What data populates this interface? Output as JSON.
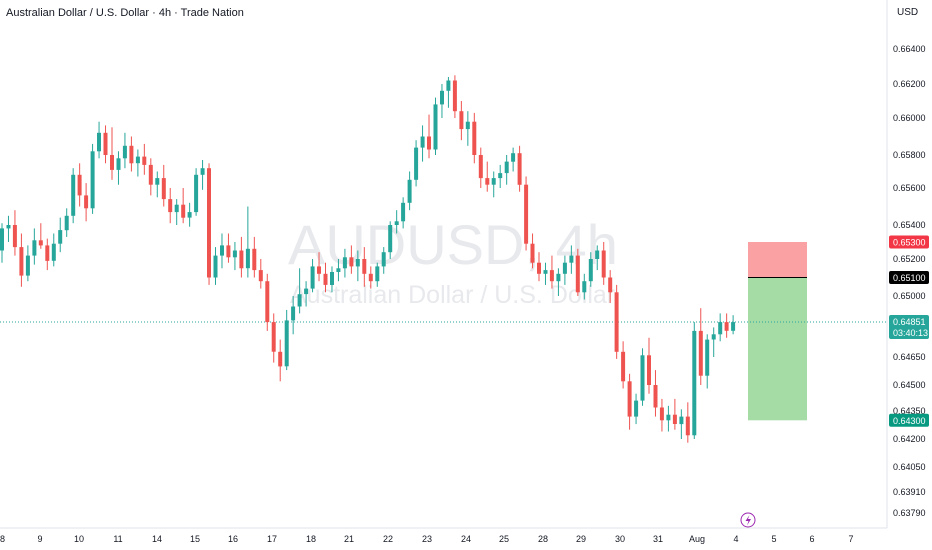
{
  "header": {
    "title": "Australian Dollar / U.S. Dollar · 4h · Trade Nation",
    "currency": "USD"
  },
  "watermark": {
    "symbol": "AUDUSD, 4h",
    "description": "Australian Dollar / U.S. Dollar"
  },
  "colors": {
    "up": "#26a69a",
    "down": "#ef5350",
    "stop_zone": "#faa1a4",
    "target_zone": "#a5dca5",
    "current_price": "#26a69a",
    "stop_badge": "#f23645",
    "target_badge": "#089981",
    "entry_badge": "#000000"
  },
  "chart_data": {
    "type": "candlestick",
    "symbol": "AUDUSD",
    "timeframe": "4h",
    "y_axis_ticks": [
      "0.66400",
      "0.66200",
      "0.66000",
      "0.65800",
      "0.65600",
      "0.65400",
      "0.65200",
      "0.65000",
      "0.64650",
      "0.64500",
      "0.64350",
      "0.64200",
      "0.64050",
      "0.63910",
      "0.63790"
    ],
    "x_axis_ticks": [
      "8",
      "9",
      "10",
      "11",
      "14",
      "15",
      "16",
      "17",
      "18",
      "21",
      "22",
      "23",
      "24",
      "25",
      "28",
      "29",
      "30",
      "31",
      "Aug",
      "4",
      "5",
      "6",
      "7"
    ],
    "current_price": "0.64851",
    "countdown": "03:40:13",
    "position": {
      "type": "short",
      "stop": "0.65300",
      "entry": "0.65100",
      "target": "0.64300"
    },
    "candles": [
      [
        0.6525,
        0.6541,
        0.6518,
        0.6538
      ],
      [
        0.6538,
        0.6545,
        0.653,
        0.654
      ],
      [
        0.654,
        0.6548,
        0.6522,
        0.6527
      ],
      [
        0.6527,
        0.6535,
        0.6505,
        0.6511
      ],
      [
        0.6511,
        0.6528,
        0.6508,
        0.6522
      ],
      [
        0.6522,
        0.6538,
        0.6517,
        0.6531
      ],
      [
        0.6531,
        0.6541,
        0.6526,
        0.6528
      ],
      [
        0.6528,
        0.6532,
        0.6514,
        0.6519
      ],
      [
        0.6519,
        0.6535,
        0.6516,
        0.6529
      ],
      [
        0.6529,
        0.6544,
        0.6524,
        0.6537
      ],
      [
        0.6537,
        0.6549,
        0.6533,
        0.6545
      ],
      [
        0.6545,
        0.6572,
        0.6541,
        0.6568
      ],
      [
        0.6568,
        0.6575,
        0.655,
        0.6556
      ],
      [
        0.6556,
        0.6563,
        0.6542,
        0.6549
      ],
      [
        0.6549,
        0.6586,
        0.6546,
        0.6582
      ],
      [
        0.6582,
        0.6598,
        0.6578,
        0.6592
      ],
      [
        0.6592,
        0.6596,
        0.6575,
        0.658
      ],
      [
        0.658,
        0.6595,
        0.6565,
        0.6571
      ],
      [
        0.6571,
        0.6582,
        0.6562,
        0.6578
      ],
      [
        0.6578,
        0.6592,
        0.6572,
        0.6585
      ],
      [
        0.6585,
        0.659,
        0.657,
        0.6575
      ],
      [
        0.6575,
        0.6583,
        0.6567,
        0.6579
      ],
      [
        0.6579,
        0.6586,
        0.6568,
        0.6574
      ],
      [
        0.6574,
        0.6578,
        0.6556,
        0.6562
      ],
      [
        0.6562,
        0.657,
        0.6555,
        0.6566
      ],
      [
        0.6566,
        0.6574,
        0.655,
        0.6554
      ],
      [
        0.6554,
        0.656,
        0.6541,
        0.6547
      ],
      [
        0.6547,
        0.6554,
        0.654,
        0.6551
      ],
      [
        0.6551,
        0.656,
        0.6541,
        0.6544
      ],
      [
        0.6544,
        0.6552,
        0.6539,
        0.6547
      ],
      [
        0.6547,
        0.6572,
        0.6545,
        0.6568
      ],
      [
        0.6568,
        0.6577,
        0.6559,
        0.6572
      ],
      [
        0.6572,
        0.6575,
        0.6506,
        0.651
      ],
      [
        0.651,
        0.6527,
        0.6506,
        0.6522
      ],
      [
        0.6522,
        0.6535,
        0.6515,
        0.6528
      ],
      [
        0.6528,
        0.6535,
        0.6518,
        0.6521
      ],
      [
        0.6521,
        0.653,
        0.6514,
        0.6525
      ],
      [
        0.6525,
        0.6533,
        0.651,
        0.6515
      ],
      [
        0.6515,
        0.655,
        0.651,
        0.6526
      ],
      [
        0.6526,
        0.6533,
        0.651,
        0.6514
      ],
      [
        0.6514,
        0.652,
        0.6504,
        0.6508
      ],
      [
        0.6508,
        0.6512,
        0.648,
        0.6485
      ],
      [
        0.6485,
        0.649,
        0.6462,
        0.6468
      ],
      [
        0.6468,
        0.6475,
        0.6452,
        0.646
      ],
      [
        0.646,
        0.6492,
        0.6458,
        0.6486
      ],
      [
        0.6486,
        0.65,
        0.6478,
        0.6494
      ],
      [
        0.6494,
        0.6515,
        0.649,
        0.6501
      ],
      [
        0.6501,
        0.6508,
        0.6494,
        0.6504
      ],
      [
        0.6504,
        0.652,
        0.6502,
        0.6516
      ],
      [
        0.6516,
        0.6524,
        0.6508,
        0.6512
      ],
      [
        0.6512,
        0.6518,
        0.6502,
        0.6506
      ],
      [
        0.6506,
        0.6516,
        0.6502,
        0.6513
      ],
      [
        0.6513,
        0.652,
        0.6508,
        0.6515
      ],
      [
        0.6515,
        0.6526,
        0.651,
        0.6521
      ],
      [
        0.6521,
        0.6528,
        0.6512,
        0.6516
      ],
      [
        0.6516,
        0.6525,
        0.6508,
        0.652
      ],
      [
        0.652,
        0.6527,
        0.6505,
        0.6512
      ],
      [
        0.6512,
        0.6516,
        0.6504,
        0.6508
      ],
      [
        0.6508,
        0.6518,
        0.6505,
        0.6516
      ],
      [
        0.6516,
        0.6527,
        0.6512,
        0.6524
      ],
      [
        0.6524,
        0.6542,
        0.652,
        0.654
      ],
      [
        0.654,
        0.6548,
        0.6535,
        0.6542
      ],
      [
        0.6542,
        0.6555,
        0.6538,
        0.6552
      ],
      [
        0.6552,
        0.657,
        0.6548,
        0.6565
      ],
      [
        0.6565,
        0.6588,
        0.6561,
        0.6584
      ],
      [
        0.6584,
        0.6596,
        0.6576,
        0.659
      ],
      [
        0.659,
        0.6602,
        0.6578,
        0.6583
      ],
      [
        0.6583,
        0.6612,
        0.658,
        0.6608
      ],
      [
        0.6608,
        0.662,
        0.66,
        0.6616
      ],
      [
        0.6616,
        0.6624,
        0.6606,
        0.6622
      ],
      [
        0.6622,
        0.6625,
        0.66,
        0.6604
      ],
      [
        0.6604,
        0.661,
        0.6588,
        0.6594
      ],
      [
        0.6594,
        0.6604,
        0.6585,
        0.6598
      ],
      [
        0.6598,
        0.6603,
        0.6575,
        0.658
      ],
      [
        0.658,
        0.6584,
        0.656,
        0.6566
      ],
      [
        0.6566,
        0.6576,
        0.6558,
        0.6562
      ],
      [
        0.6562,
        0.657,
        0.6555,
        0.6566
      ],
      [
        0.6566,
        0.6574,
        0.656,
        0.6569
      ],
      [
        0.6569,
        0.658,
        0.6562,
        0.6576
      ],
      [
        0.6576,
        0.6584,
        0.657,
        0.6581
      ],
      [
        0.6581,
        0.6585,
        0.6558,
        0.6562
      ],
      [
        0.6562,
        0.6567,
        0.6525,
        0.6529
      ],
      [
        0.6529,
        0.6535,
        0.6515,
        0.6518
      ],
      [
        0.6518,
        0.6524,
        0.6508,
        0.6512
      ],
      [
        0.6512,
        0.6518,
        0.6506,
        0.6514
      ],
      [
        0.6514,
        0.6522,
        0.6504,
        0.6508
      ],
      [
        0.6508,
        0.6515,
        0.65,
        0.6512
      ],
      [
        0.6512,
        0.6522,
        0.6506,
        0.6518
      ],
      [
        0.6518,
        0.6528,
        0.6512,
        0.6522
      ],
      [
        0.6522,
        0.6526,
        0.65,
        0.6502
      ],
      [
        0.6502,
        0.6512,
        0.6498,
        0.6508
      ],
      [
        0.6508,
        0.6524,
        0.6505,
        0.652
      ],
      [
        0.652,
        0.6528,
        0.6514,
        0.6525
      ],
      [
        0.6525,
        0.653,
        0.6506,
        0.651
      ],
      [
        0.651,
        0.6514,
        0.6496,
        0.6502
      ],
      [
        0.6502,
        0.6506,
        0.6464,
        0.6468
      ],
      [
        0.6468,
        0.6474,
        0.6448,
        0.6452
      ],
      [
        0.6452,
        0.6456,
        0.6425,
        0.6432
      ],
      [
        0.6432,
        0.6445,
        0.6428,
        0.6441
      ],
      [
        0.6441,
        0.647,
        0.6438,
        0.6466
      ],
      [
        0.6466,
        0.6476,
        0.6445,
        0.645
      ],
      [
        0.645,
        0.6458,
        0.6432,
        0.6437
      ],
      [
        0.6437,
        0.6442,
        0.6424,
        0.643
      ],
      [
        0.643,
        0.6438,
        0.6424,
        0.6433
      ],
      [
        0.6433,
        0.6442,
        0.6425,
        0.6428
      ],
      [
        0.6428,
        0.6436,
        0.642,
        0.6432
      ],
      [
        0.6432,
        0.644,
        0.6418,
        0.6422
      ],
      [
        0.6422,
        0.6485,
        0.642,
        0.648
      ],
      [
        0.648,
        0.6493,
        0.645,
        0.6455
      ],
      [
        0.6455,
        0.6478,
        0.6448,
        0.6475
      ],
      [
        0.6475,
        0.6482,
        0.6465,
        0.6478
      ],
      [
        0.6478,
        0.649,
        0.6474,
        0.6485
      ],
      [
        0.6485,
        0.649,
        0.6476,
        0.648
      ],
      [
        0.648,
        0.6489,
        0.6478,
        0.6485
      ]
    ]
  }
}
